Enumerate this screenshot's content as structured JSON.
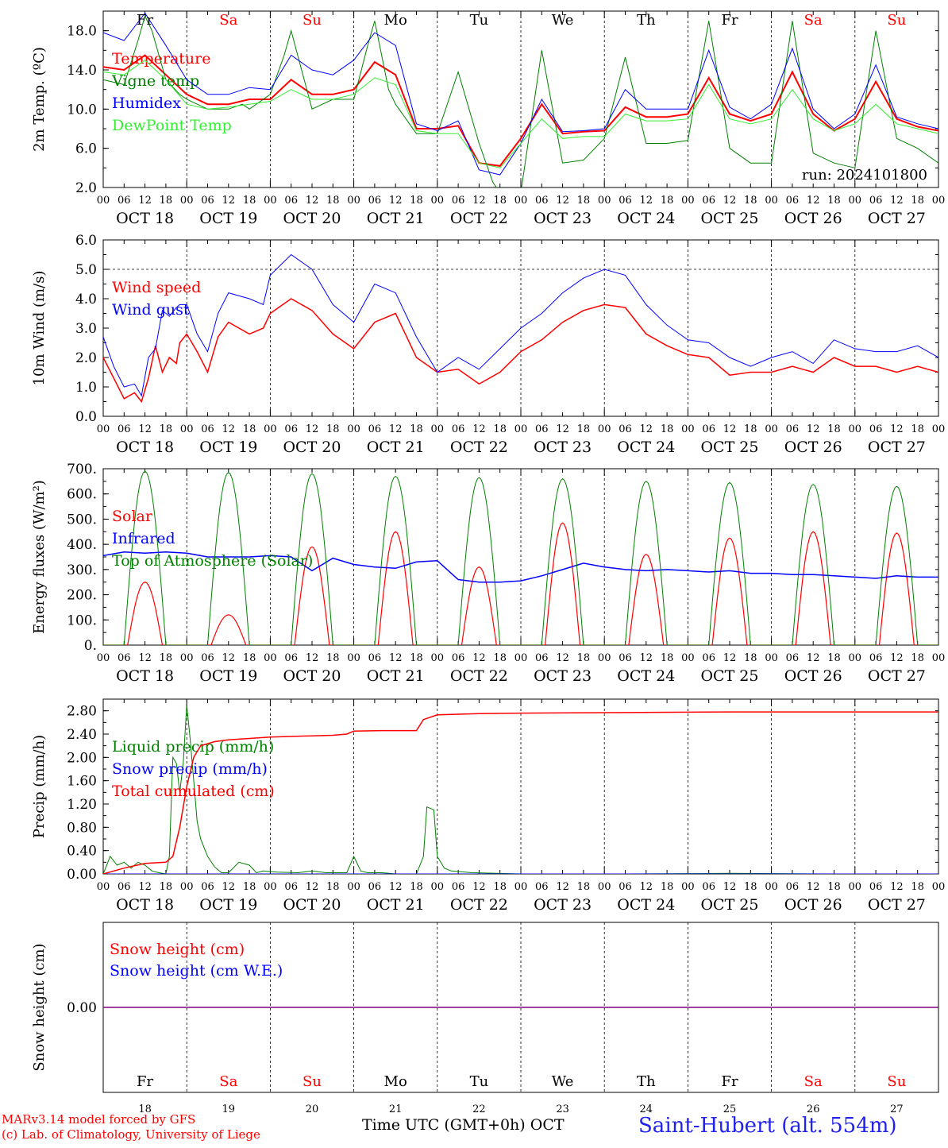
{
  "location": "Saint-Hubert (alt. 554m)",
  "x_axis_label": "Time UTC (GMT+0h)",
  "x_axis_month": "OCT",
  "credits": [
    "MARv3.14 model forced by GFS",
    "(c) Lab. of Climatology, University of Liege"
  ],
  "colors": {
    "red": "#ff0000",
    "green": "#008000",
    "blue": "#0000ff",
    "lightgreen": "#33ee33",
    "purple": "#800080",
    "weekend": "#ff0000",
    "weekday": "#000000",
    "location": "#2222ee"
  },
  "days": [
    {
      "dow": "Fr",
      "date": "OCT 18",
      "num": "18",
      "weekend": false
    },
    {
      "dow": "Sa",
      "date": "OCT 19",
      "num": "19",
      "weekend": true
    },
    {
      "dow": "Su",
      "date": "OCT 20",
      "num": "20",
      "weekend": true
    },
    {
      "dow": "Mo",
      "date": "OCT 21",
      "num": "21",
      "weekend": false
    },
    {
      "dow": "Tu",
      "date": "OCT 22",
      "num": "22",
      "weekend": false
    },
    {
      "dow": "We",
      "date": "OCT 23",
      "num": "23",
      "weekend": false
    },
    {
      "dow": "Th",
      "date": "OCT 24",
      "num": "24",
      "weekend": false
    },
    {
      "dow": "Fr",
      "date": "OCT 25",
      "num": "25",
      "weekend": false
    },
    {
      "dow": "Sa",
      "date": "OCT 26",
      "num": "26",
      "weekend": true
    },
    {
      "dow": "Su",
      "date": "OCT 27",
      "num": "27",
      "weekend": true
    }
  ],
  "hour_ticks": [
    "00",
    "06",
    "12",
    "18"
  ],
  "chart_data": [
    {
      "id": "temp",
      "type": "line",
      "ylabel": "2m Temp. (ºC)",
      "ylim": [
        2,
        20
      ],
      "yticks": [
        "2.0",
        "6.0",
        "10.0",
        "14.0",
        "18.0"
      ],
      "annotation": "run: 2024101800",
      "x_unit": "hours since OCT 18 00 UTC",
      "series": [
        {
          "name": "Temperature",
          "color": "red",
          "width": 2,
          "x": [
            0,
            6,
            12,
            18,
            24,
            30,
            36,
            42,
            48,
            54,
            60,
            66,
            72,
            78,
            84,
            90,
            96,
            102,
            108,
            114,
            120,
            126,
            132,
            138,
            144,
            150,
            156,
            162,
            168,
            174,
            180,
            186,
            192,
            198,
            204,
            210,
            216,
            222,
            228,
            234,
            240
          ],
          "y": [
            14.3,
            14.0,
            15.5,
            13.5,
            11.5,
            10.5,
            10.5,
            11.0,
            11.0,
            13.0,
            11.5,
            11.5,
            12.0,
            14.8,
            13.5,
            8.0,
            8.0,
            8.3,
            4.5,
            4.2,
            7.0,
            10.5,
            7.5,
            7.7,
            7.8,
            10.2,
            9.2,
            9.2,
            9.5,
            13.2,
            9.5,
            8.8,
            9.5,
            13.8,
            9.5,
            7.8,
            9.0,
            12.8,
            9.0,
            8.2,
            7.8
          ]
        },
        {
          "name": "Vigne temp",
          "color": "green",
          "width": 1,
          "x": [
            0,
            6,
            10,
            12,
            14,
            18,
            22,
            24,
            30,
            36,
            40,
            42,
            48,
            52,
            54,
            60,
            66,
            72,
            76,
            78,
            82,
            84,
            90,
            96,
            102,
            108,
            112,
            114,
            118,
            120,
            126,
            132,
            138,
            144,
            150,
            156,
            162,
            168,
            174,
            180,
            186,
            192,
            198,
            204,
            210,
            216,
            222,
            228,
            234,
            240
          ],
          "y": [
            13.0,
            12.5,
            17.0,
            19.5,
            18.0,
            13.0,
            11.5,
            11.0,
            10.0,
            10.0,
            10.5,
            10.0,
            11.5,
            15.5,
            18.0,
            10.0,
            11.0,
            11.0,
            16.5,
            19.0,
            12.0,
            10.5,
            7.5,
            7.5,
            13.8,
            6.5,
            2.5,
            1.5,
            -2,
            1.5,
            16.0,
            4.5,
            4.8,
            7.0,
            15.3,
            6.5,
            6.5,
            6.8,
            19.0,
            6.0,
            4.5,
            4.5,
            19.0,
            5.5,
            4.5,
            4.0,
            18.0,
            7.0,
            6.0,
            4.5
          ]
        },
        {
          "name": "Humidex",
          "color": "blue",
          "width": 1,
          "x": [
            0,
            6,
            12,
            18,
            24,
            30,
            36,
            42,
            48,
            54,
            60,
            66,
            72,
            78,
            84,
            90,
            96,
            102,
            108,
            114,
            120,
            126,
            132,
            138,
            144,
            150,
            156,
            162,
            168,
            174,
            180,
            186,
            192,
            198,
            204,
            210,
            216,
            222,
            228,
            234,
            240
          ],
          "y": [
            17.8,
            17.0,
            19.8,
            16.5,
            13.0,
            11.5,
            11.5,
            12.2,
            12.0,
            15.5,
            14.0,
            13.5,
            15.0,
            17.8,
            16.5,
            8.5,
            7.8,
            8.8,
            3.8,
            3.3,
            6.5,
            11.0,
            7.7,
            7.8,
            8.0,
            12.0,
            10.0,
            10.0,
            10.0,
            16.0,
            10.2,
            9.0,
            10.5,
            16.2,
            10.0,
            8.0,
            9.5,
            14.5,
            9.2,
            8.5,
            8.0
          ]
        },
        {
          "name": "DewPoint Temp",
          "color": "lightgreen",
          "width": 1,
          "x": [
            0,
            6,
            12,
            18,
            24,
            30,
            36,
            42,
            48,
            54,
            60,
            66,
            72,
            78,
            84,
            90,
            96,
            102,
            108,
            114,
            120,
            126,
            132,
            138,
            144,
            150,
            156,
            162,
            168,
            174,
            180,
            186,
            192,
            198,
            204,
            210,
            216,
            222,
            228,
            234,
            240
          ],
          "y": [
            13.8,
            13.5,
            15.0,
            13.0,
            10.5,
            10.0,
            10.2,
            10.5,
            10.8,
            12.0,
            11.0,
            11.0,
            11.5,
            13.2,
            12.5,
            7.8,
            7.5,
            7.5,
            4.5,
            4.0,
            6.5,
            9.0,
            7.0,
            7.2,
            7.2,
            9.5,
            8.8,
            8.8,
            9.0,
            12.5,
            9.0,
            8.5,
            9.0,
            12.0,
            9.0,
            7.8,
            8.5,
            10.5,
            8.5,
            8.0,
            7.5
          ]
        }
      ]
    },
    {
      "id": "wind",
      "type": "line",
      "ylabel": "10m Wind (m/s)",
      "ylim": [
        0,
        6
      ],
      "yticks": [
        "0.0",
        "1.0",
        "2.0",
        "3.0",
        "4.0",
        "5.0",
        "6.0"
      ],
      "dashed_level": 5,
      "x_unit": "hours since OCT 18 00 UTC",
      "series": [
        {
          "name": "Wind speed",
          "color": "red",
          "width": 1.5,
          "x": [
            0,
            3,
            6,
            9,
            11,
            13,
            15,
            17,
            19,
            21,
            22,
            24,
            27,
            30,
            33,
            36,
            42,
            46,
            48,
            54,
            60,
            66,
            72,
            78,
            84,
            90,
            96,
            102,
            108,
            114,
            120,
            126,
            132,
            138,
            144,
            150,
            156,
            162,
            168,
            174,
            180,
            186,
            192,
            198,
            204,
            210,
            216,
            222,
            228,
            234,
            240
          ],
          "y": [
            2.0,
            1.3,
            0.6,
            0.8,
            0.5,
            1.3,
            2.4,
            1.5,
            2.0,
            1.8,
            2.5,
            2.8,
            2.2,
            1.5,
            2.7,
            3.2,
            2.8,
            3.0,
            3.5,
            4.0,
            3.6,
            2.8,
            2.3,
            3.2,
            3.5,
            2.0,
            1.5,
            1.6,
            1.1,
            1.5,
            2.2,
            2.6,
            3.2,
            3.6,
            3.8,
            3.7,
            2.8,
            2.4,
            2.1,
            2.0,
            1.4,
            1.5,
            1.5,
            1.7,
            1.5,
            2.0,
            1.7,
            1.7,
            1.5,
            1.7,
            1.5
          ]
        },
        {
          "name": "Wind gust",
          "color": "blue",
          "width": 1,
          "x": [
            0,
            3,
            6,
            9,
            11,
            13,
            15,
            17,
            19,
            21,
            22,
            24,
            27,
            30,
            33,
            36,
            42,
            46,
            48,
            54,
            60,
            66,
            72,
            78,
            84,
            90,
            96,
            102,
            108,
            114,
            120,
            126,
            132,
            138,
            144,
            150,
            156,
            162,
            168,
            174,
            180,
            186,
            192,
            198,
            204,
            210,
            216,
            222,
            228,
            234,
            240
          ],
          "y": [
            2.7,
            1.7,
            1.0,
            1.1,
            0.7,
            2.0,
            2.3,
            3.6,
            3.4,
            3.7,
            3.8,
            3.8,
            2.8,
            2.2,
            3.5,
            4.2,
            4.0,
            3.8,
            4.8,
            5.5,
            5.0,
            3.8,
            3.2,
            4.5,
            4.2,
            2.7,
            1.5,
            2.0,
            1.6,
            2.3,
            3.0,
            3.5,
            4.2,
            4.7,
            5.0,
            4.8,
            3.8,
            3.1,
            2.6,
            2.5,
            2.0,
            1.7,
            2.0,
            2.2,
            1.8,
            2.6,
            2.3,
            2.2,
            2.2,
            2.4,
            2.0
          ]
        }
      ]
    },
    {
      "id": "flux",
      "type": "line",
      "ylabel": "Energy fluxes (W/m²)",
      "ylim": [
        0,
        700
      ],
      "yticks": [
        "0.",
        "100.",
        "200.",
        "300.",
        "400.",
        "500.",
        "600.",
        "700."
      ],
      "x_unit": "hours since OCT 18 00 UTC",
      "toa_peaks": [
        690,
        685,
        680,
        670,
        665,
        660,
        650,
        645,
        638,
        630
      ],
      "solar_peaks": [
        250,
        120,
        390,
        450,
        310,
        485,
        360,
        425,
        450,
        445
      ],
      "series": [
        {
          "name": "Solar",
          "color": "red",
          "width": 1.2
        },
        {
          "name": "Infrared",
          "color": "blue",
          "width": 1.5,
          "x": [
            0,
            6,
            12,
            18,
            24,
            30,
            36,
            42,
            48,
            54,
            60,
            66,
            72,
            78,
            84,
            90,
            96,
            102,
            108,
            114,
            120,
            126,
            132,
            138,
            144,
            150,
            156,
            162,
            168,
            174,
            180,
            186,
            192,
            198,
            204,
            210,
            216,
            222,
            228,
            234,
            240
          ],
          "y": [
            355,
            370,
            365,
            370,
            365,
            350,
            350,
            350,
            355,
            350,
            295,
            345,
            320,
            310,
            305,
            330,
            335,
            260,
            250,
            250,
            255,
            275,
            300,
            325,
            310,
            300,
            295,
            300,
            295,
            290,
            295,
            285,
            285,
            280,
            280,
            275,
            270,
            265,
            275,
            270,
            270
          ]
        },
        {
          "name": "Top of Atmosphere (Solar)",
          "color": "green",
          "width": 1
        }
      ]
    },
    {
      "id": "precip",
      "type": "line",
      "ylabel": "Precip (mm/h)",
      "ylim": [
        0,
        3.0
      ],
      "yticks": [
        "0.00",
        "0.40",
        "0.80",
        "1.20",
        "1.60",
        "2.00",
        "2.40",
        "2.80"
      ],
      "x_unit": "hours since OCT 18 00 UTC",
      "series": [
        {
          "name": "Liquid precip (mm/h)",
          "color": "green",
          "width": 1,
          "x": [
            0,
            2,
            4,
            6,
            8,
            10,
            12,
            14,
            16,
            18,
            19,
            20,
            21,
            22,
            23,
            24,
            25,
            26,
            27,
            28,
            30,
            32,
            34,
            36,
            39,
            42,
            44,
            46,
            50,
            56,
            60,
            64,
            70,
            72,
            74,
            76,
            80,
            84,
            90,
            92,
            93,
            95,
            96,
            98,
            100,
            106,
            120,
            150,
            180,
            210,
            240
          ],
          "y": [
            0,
            0.3,
            0.15,
            0.2,
            0.1,
            0.2,
            0.15,
            0.05,
            0.02,
            0,
            0.3,
            2.0,
            1.9,
            1.4,
            1.9,
            2.9,
            2.3,
            1.6,
            0.9,
            0.6,
            0.3,
            0.12,
            0.02,
            0.02,
            0.2,
            0.15,
            0.02,
            0.05,
            0.03,
            0.02,
            0.05,
            0.02,
            0.02,
            0.3,
            0.05,
            0.02,
            0.02,
            0,
            0,
            0.3,
            1.15,
            1.1,
            0.3,
            0.1,
            0.05,
            0.02,
            0,
            0,
            0.01,
            0,
            0
          ]
        },
        {
          "name": "Snow precip (mm/h)",
          "color": "blue",
          "width": 1,
          "x": [
            0,
            240
          ],
          "y": [
            0,
            0
          ]
        },
        {
          "name": "Total cumulated (cm)",
          "color": "red",
          "width": 1.5,
          "x": [
            0,
            6,
            12,
            18,
            20,
            22,
            24,
            26,
            28,
            32,
            36,
            48,
            60,
            66,
            70,
            72,
            80,
            90,
            92,
            96,
            108,
            120,
            150,
            180,
            210,
            240
          ],
          "y": [
            0,
            0.1,
            0.18,
            0.2,
            0.3,
            0.8,
            1.5,
            2.0,
            2.2,
            2.27,
            2.3,
            2.35,
            2.37,
            2.38,
            2.4,
            2.45,
            2.46,
            2.46,
            2.65,
            2.73,
            2.75,
            2.76,
            2.77,
            2.78,
            2.78,
            2.78
          ]
        }
      ]
    },
    {
      "id": "snow",
      "type": "line",
      "ylabel": "Snow height (cm)",
      "ylim": [
        -1,
        1
      ],
      "yticks": [
        "0.00"
      ],
      "x_unit": "hours since OCT 18 00 UTC",
      "series": [
        {
          "name": "Snow height (cm)",
          "color": "red",
          "width": 1,
          "x": [
            0,
            240
          ],
          "y": [
            0,
            0
          ]
        },
        {
          "name": "Snow height (cm W.E.)",
          "color": "blue",
          "width": 1,
          "x": [
            0,
            240
          ],
          "y": [
            0,
            0
          ]
        }
      ]
    }
  ]
}
